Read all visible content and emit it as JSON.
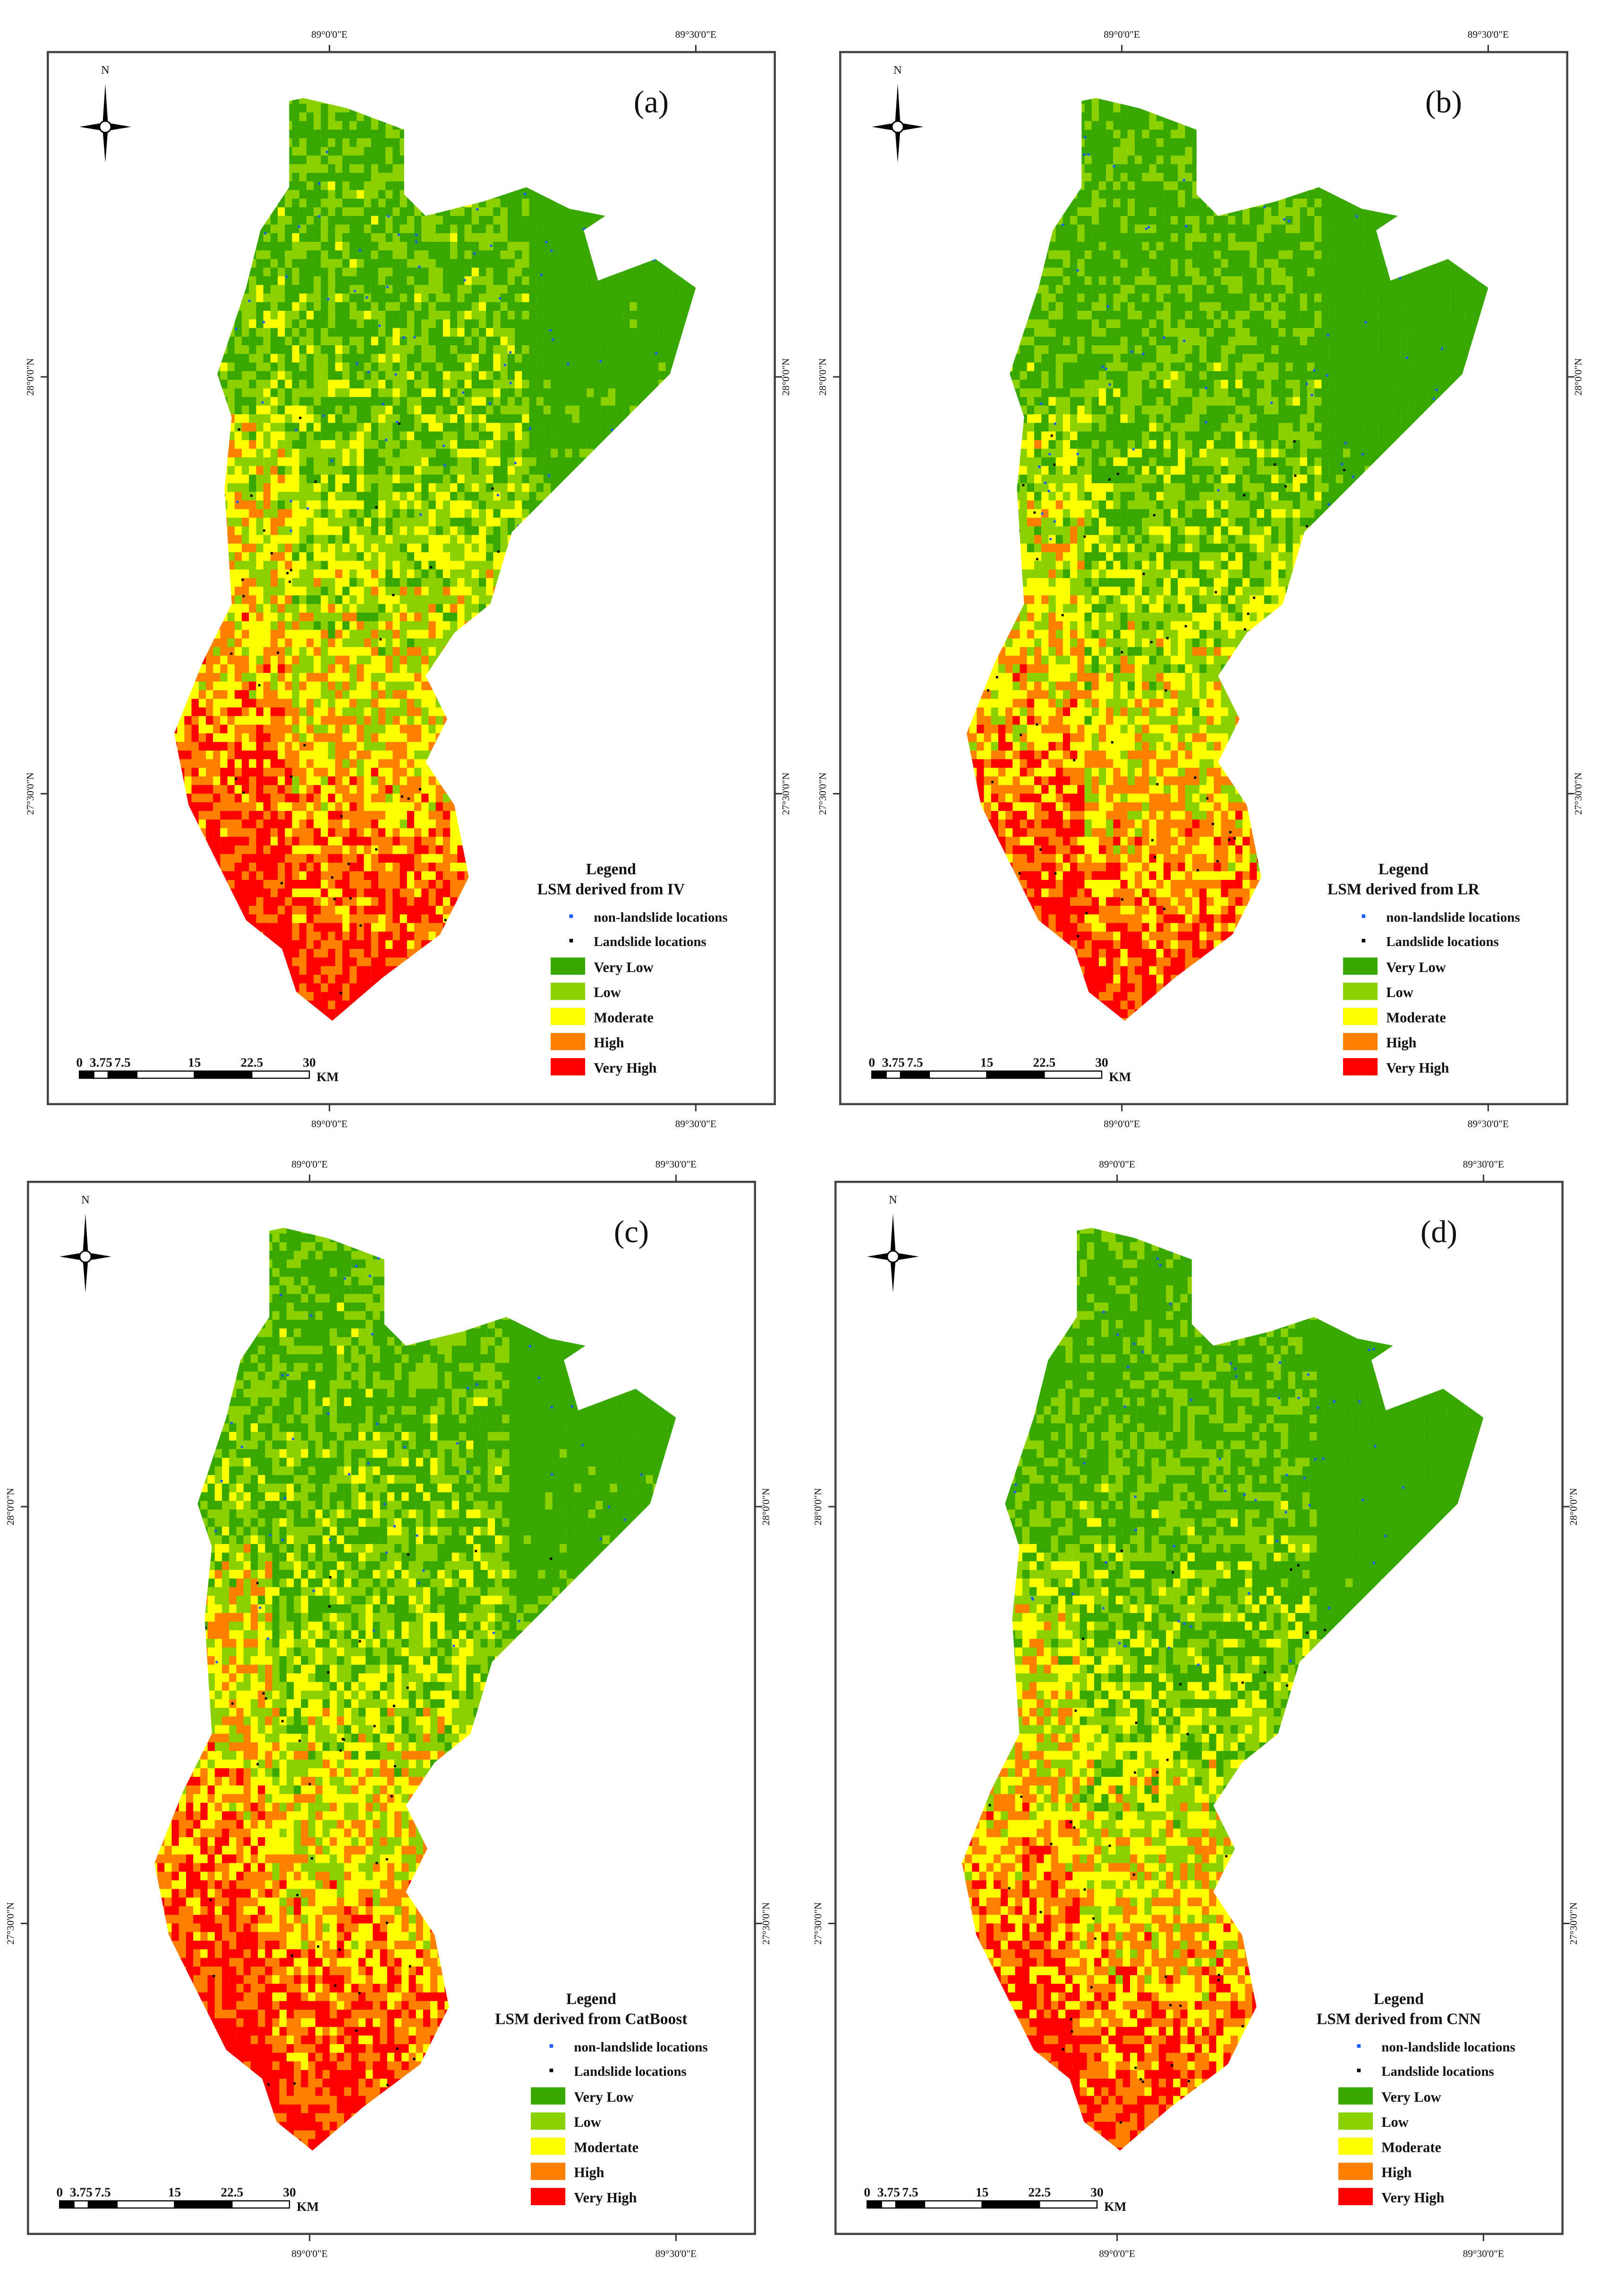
{
  "graticule": {
    "lon_left": "89°0'0\"E",
    "lon_right": "89°30'0\"E",
    "lat_top": "28°0'0\"N",
    "lat_bottom": "27°30'0\"N"
  },
  "north_label": "N",
  "scale_bar": {
    "ticks": [
      "0",
      "3.75",
      "7.5",
      "15",
      "22.5",
      "30"
    ],
    "unit": "KM"
  },
  "legend_common": {
    "heading": "Legend",
    "points": [
      {
        "label": "non-landslide locations",
        "color": "#1a5cff"
      },
      {
        "label": "Landslide locations",
        "color": "#000000"
      }
    ]
  },
  "panels": [
    {
      "label": "(a)",
      "legend_title": "LSM derived from IV",
      "classes": [
        "Very Low",
        "Low",
        "Moderate",
        "High",
        "Very High"
      ]
    },
    {
      "label": "(b)",
      "legend_title": "LSM derived from LR",
      "classes": [
        "Very Low",
        "Low",
        "Moderate",
        "High",
        "Very High"
      ]
    },
    {
      "label": "(c)",
      "legend_title": "LSM derived from CatBoost",
      "classes": [
        "Very Low",
        "Low",
        "Modertate",
        "High",
        "Very High"
      ]
    },
    {
      "label": "(d)",
      "legend_title": "LSM derived from CNN",
      "classes": [
        "Very Low",
        "Low",
        "Moderate",
        "High",
        "Very High"
      ]
    }
  ],
  "class_colors": [
    "#38a800",
    "#8bd100",
    "#ffff00",
    "#ff8000",
    "#ff0000"
  ]
}
